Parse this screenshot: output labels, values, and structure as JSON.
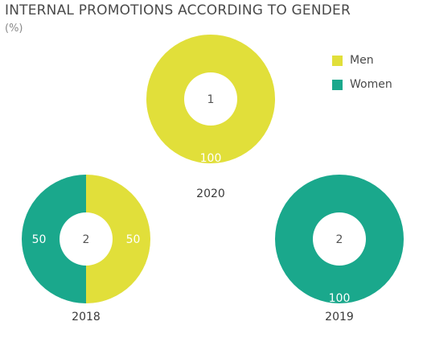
{
  "title": "INTERNAL PROMOTIONS ACCORDING TO GENDER",
  "subtitle": "(%)",
  "colors": {
    "men": "#e1df3a",
    "women": "#1aa88c"
  },
  "legend": [
    {
      "label": "Men",
      "color": "#e1df3a"
    },
    {
      "label": "Women",
      "color": "#1aa88c"
    }
  ],
  "chart_data": [
    {
      "type": "donut",
      "year": "2020",
      "center_label": "1",
      "slices": [
        {
          "name": "Men",
          "value": 100,
          "label": "100"
        }
      ]
    },
    {
      "type": "donut",
      "year": "2018",
      "center_label": "2",
      "slices": [
        {
          "name": "Men",
          "value": 50,
          "label": "50"
        },
        {
          "name": "Women",
          "value": 50,
          "label": "50"
        }
      ]
    },
    {
      "type": "donut",
      "year": "2019",
      "center_label": "2",
      "slices": [
        {
          "name": "Women",
          "value": 100,
          "label": "100"
        }
      ]
    }
  ]
}
